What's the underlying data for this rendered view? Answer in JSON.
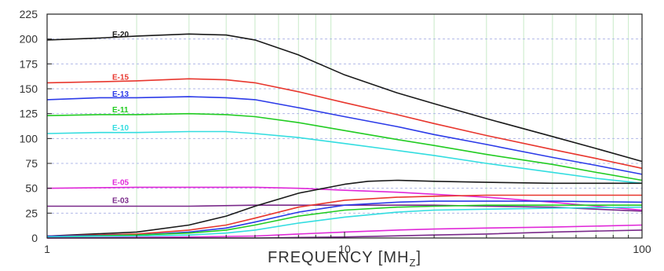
{
  "chart_data": {
    "type": "line",
    "title": "",
    "xlabel": "FREQUENCY [MH",
    "xlabel_subscript": "Z",
    "xlabel_close": "]",
    "ylabel": "",
    "xscale": "log",
    "xlim": [
      1,
      100
    ],
    "ylim": [
      0,
      225
    ],
    "x_ticks": [
      "1",
      "10",
      "100"
    ],
    "y_ticks": [
      "0",
      "25",
      "50",
      "75",
      "100",
      "125",
      "150",
      "175",
      "200",
      "225"
    ],
    "grid": {
      "horizontal": "dashed",
      "vertical": "minor-log-lines"
    },
    "colors": {
      "grid_h": "#b0b8e8",
      "grid_v": "#c8eac8",
      "axis": "#222222"
    },
    "series": [
      {
        "name": "E-20",
        "color": "#1a1a1a",
        "x": [
          1,
          1.5,
          2,
          3,
          4,
          5,
          7,
          10,
          15,
          20,
          30,
          50,
          70,
          100
        ],
        "y": [
          199,
          201,
          203,
          205,
          204,
          199,
          184,
          164,
          146,
          135,
          120,
          102,
          90,
          77
        ]
      },
      {
        "name": "E-15",
        "color": "#e8372e",
        "x": [
          1,
          1.5,
          2,
          3,
          4,
          5,
          7,
          10,
          15,
          20,
          30,
          50,
          70,
          100
        ],
        "y": [
          156,
          157,
          158,
          160,
          159,
          156,
          147,
          136,
          124,
          115,
          103,
          89,
          80,
          70
        ]
      },
      {
        "name": "E-13",
        "color": "#2c3be8",
        "x": [
          1,
          1.5,
          2,
          3,
          4,
          5,
          7,
          10,
          15,
          20,
          30,
          50,
          70,
          100
        ],
        "y": [
          139,
          141,
          141,
          142,
          141,
          139,
          131,
          122,
          112,
          104,
          94,
          81,
          73,
          64
        ]
      },
      {
        "name": "E-11",
        "color": "#22cc22",
        "x": [
          1,
          1.5,
          2,
          3,
          4,
          5,
          7,
          10,
          15,
          20,
          30,
          50,
          70,
          100
        ],
        "y": [
          123,
          124,
          124,
          125,
          124,
          122,
          116,
          108,
          99,
          93,
          84,
          74,
          66,
          58
        ]
      },
      {
        "name": "E-10",
        "color": "#33dde0",
        "x": [
          1,
          1.5,
          2,
          3,
          4,
          5,
          7,
          10,
          15,
          20,
          30,
          50,
          70,
          100
        ],
        "y": [
          105,
          106,
          106,
          107,
          107,
          105,
          101,
          95,
          88,
          83,
          75,
          66,
          60,
          55
        ]
      },
      {
        "name": "E-05",
        "color": "#e028d8",
        "x": [
          1,
          2,
          3,
          5,
          7,
          10,
          15,
          20,
          30,
          50,
          70,
          100
        ],
        "y": [
          50,
          51,
          51,
          51,
          50,
          48,
          46,
          44,
          41,
          36,
          32,
          28
        ]
      },
      {
        "name": "E-03",
        "color": "#7a2a8a",
        "x": [
          1,
          2,
          3,
          5,
          7,
          10,
          15,
          20,
          30,
          50,
          70,
          100
        ],
        "y": [
          32,
          32,
          32,
          33,
          33,
          33,
          33,
          33,
          32,
          31,
          29,
          27
        ]
      },
      {
        "name": "",
        "color": "#1a1a1a",
        "x": [
          1,
          2,
          3,
          4,
          5,
          7,
          10,
          12,
          15,
          20,
          30,
          50,
          100
        ],
        "y": [
          2,
          6,
          13,
          22,
          32,
          45,
          54,
          57,
          58,
          57,
          56,
          55,
          55
        ]
      },
      {
        "name": "",
        "color": "#e8372e",
        "x": [
          1,
          2,
          3,
          4,
          5,
          7,
          10,
          15,
          20,
          30,
          50,
          100
        ],
        "y": [
          2,
          4,
          8,
          13,
          20,
          31,
          38,
          41,
          42,
          43,
          43,
          43
        ]
      },
      {
        "name": "",
        "color": "#2c3be8",
        "x": [
          1,
          2,
          3,
          4,
          5,
          7,
          10,
          15,
          20,
          30,
          50,
          100
        ],
        "y": [
          2,
          3,
          6,
          10,
          16,
          26,
          33,
          36,
          37,
          37,
          37,
          36
        ]
      },
      {
        "name": "",
        "color": "#22cc22",
        "x": [
          1,
          2,
          3,
          4,
          5,
          7,
          10,
          15,
          20,
          30,
          50,
          100
        ],
        "y": [
          1,
          3,
          5,
          8,
          13,
          22,
          28,
          31,
          32,
          33,
          33,
          33
        ]
      },
      {
        "name": "",
        "color": "#33dde0",
        "x": [
          1,
          2,
          3,
          4,
          5,
          7,
          10,
          15,
          20,
          30,
          50,
          100
        ],
        "y": [
          1,
          2,
          3,
          5,
          8,
          15,
          21,
          26,
          28,
          29,
          30,
          31
        ]
      },
      {
        "name": "",
        "color": "#e028d8",
        "x": [
          1,
          3,
          5,
          7,
          10,
          15,
          20,
          30,
          50,
          100
        ],
        "y": [
          0,
          1,
          2,
          4,
          6,
          8,
          9,
          10,
          11,
          13
        ]
      },
      {
        "name": "",
        "color": "#7a2a8a",
        "x": [
          1,
          5,
          10,
          20,
          30,
          50,
          100
        ],
        "y": [
          0,
          0,
          1,
          3,
          4,
          6,
          8
        ]
      }
    ]
  }
}
